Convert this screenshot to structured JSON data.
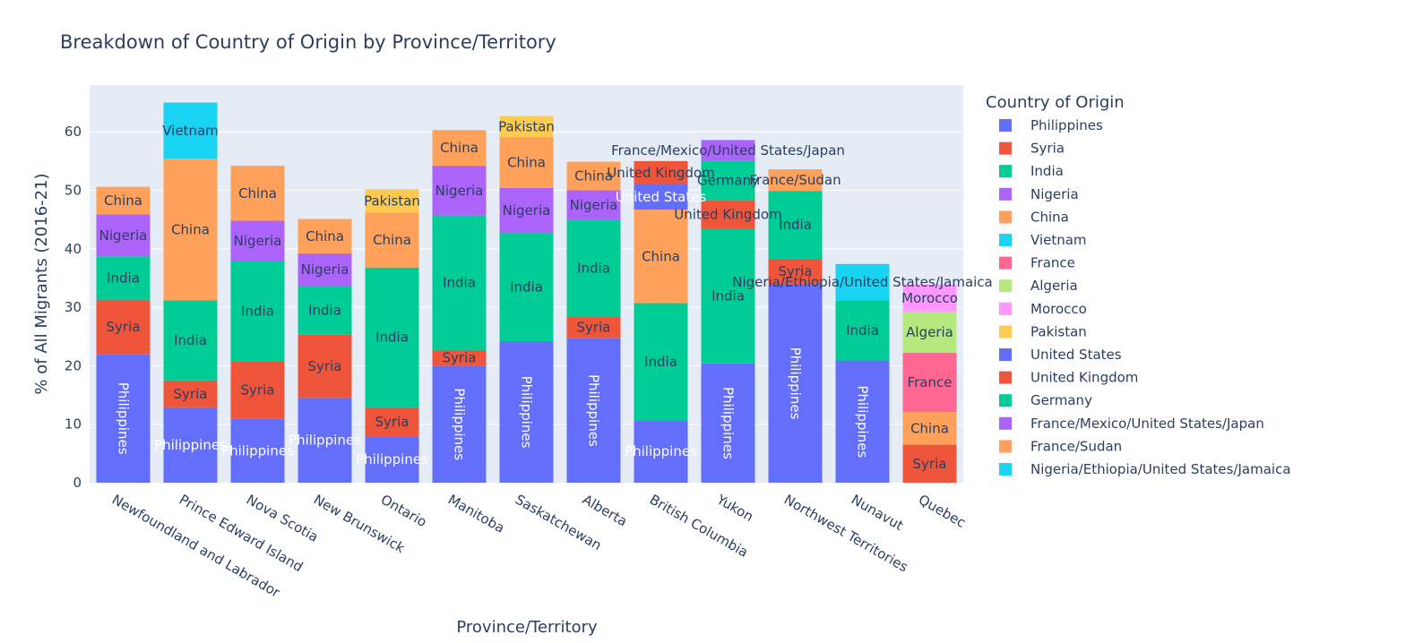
{
  "chart_data": {
    "type": "bar",
    "stacked": true,
    "title": "Breakdown of Country of Origin by Province/Territory",
    "xlabel": "Province/Territory",
    "ylabel": "% of All Migrants (2016-21)",
    "ylim": [
      0,
      68
    ],
    "yticks": [
      0,
      10,
      20,
      30,
      40,
      50,
      60
    ],
    "grid": true,
    "legend_title": "Country of Origin",
    "legend_position": "right",
    "categories": [
      "Newfoundland and Labrador",
      "Prince Edward Island",
      "Nova Scotia",
      "New Brunswick",
      "Ontario",
      "Manitoba",
      "Saskatchewan",
      "Alberta",
      "British Columbia",
      "Yukon",
      "Northwest Territories",
      "Nunavut",
      "Quebec"
    ],
    "series": [
      {
        "name": "Philippines",
        "color": "#636efa",
        "values": [
          22.0,
          12.9,
          10.9,
          14.5,
          7.9,
          20.0,
          24.2,
          24.7,
          10.7,
          20.4,
          34.0,
          20.9,
          0
        ]
      },
      {
        "name": "Syria",
        "color": "#ef553b",
        "values": [
          9.3,
          4.6,
          9.9,
          10.8,
          5.0,
          2.7,
          0,
          3.7,
          0,
          0,
          4.3,
          0,
          6.5
        ]
      },
      {
        "name": "India",
        "color": "#00cc96",
        "values": [
          7.4,
          13.7,
          17.1,
          8.4,
          23.9,
          23.0,
          18.5,
          16.5,
          20.0,
          23.1,
          11.6,
          10.3,
          0
        ]
      },
      {
        "name": "Nigeria",
        "color": "#ab63fa",
        "values": [
          7.2,
          0,
          6.9,
          5.5,
          0,
          8.5,
          7.7,
          5.1,
          0,
          0,
          0,
          0,
          0
        ]
      },
      {
        "name": "China",
        "color": "#ffa15a",
        "values": [
          4.7,
          24.2,
          9.4,
          5.9,
          9.4,
          6.1,
          8.7,
          4.9,
          16.0,
          0,
          0,
          0,
          5.6
        ]
      },
      {
        "name": "Vietnam",
        "color": "#19d3f3",
        "values": [
          0,
          9.6,
          0,
          0,
          0,
          0,
          0,
          0,
          0,
          0,
          0,
          0,
          0
        ]
      },
      {
        "name": "France",
        "color": "#ff6692",
        "values": [
          0,
          0,
          0,
          0,
          0,
          0,
          0,
          0,
          0,
          0,
          0,
          0,
          10.1
        ]
      },
      {
        "name": "Algeria",
        "color": "#b6e880",
        "values": [
          0,
          0,
          0,
          0,
          0,
          0,
          0,
          0,
          0,
          0,
          0,
          0,
          7.0
        ]
      },
      {
        "name": "Morocco",
        "color": "#ff97ff",
        "values": [
          0,
          0,
          0,
          0,
          0,
          0,
          0,
          0,
          0,
          0,
          0,
          0,
          4.7
        ]
      },
      {
        "name": "Pakistan",
        "color": "#fecb52",
        "values": [
          0,
          0,
          0,
          0,
          4.0,
          0,
          3.6,
          0,
          0,
          0,
          0,
          0,
          0
        ]
      },
      {
        "name": "United States",
        "color": "#636efa",
        "values": [
          0,
          0,
          0,
          0,
          0,
          0,
          0,
          0,
          4.3,
          0,
          0,
          0,
          0
        ]
      },
      {
        "name": "United Kingdom",
        "color": "#ef553b",
        "values": [
          0,
          0,
          0,
          0,
          0,
          0,
          0,
          0,
          4.0,
          4.8,
          0,
          0,
          0
        ]
      },
      {
        "name": "Germany",
        "color": "#00cc96",
        "values": [
          0,
          0,
          0,
          0,
          0,
          0,
          0,
          0,
          0,
          6.8,
          0,
          0,
          0
        ]
      },
      {
        "name": "France/Mexico/United States/Japan",
        "color": "#ab63fa",
        "values": [
          0,
          0,
          0,
          0,
          0,
          0,
          0,
          0,
          0,
          3.5,
          0,
          0,
          0
        ]
      },
      {
        "name": "France/Sudan",
        "color": "#ffa15a",
        "values": [
          0,
          0,
          0,
          0,
          0,
          0,
          0,
          0,
          0,
          0,
          3.7,
          0,
          0
        ]
      },
      {
        "name": "Nigeria/Ethiopia/United States/Jamaica",
        "color": "#19d3f3",
        "values": [
          0,
          0,
          0,
          0,
          0,
          0,
          0,
          0,
          0,
          0,
          0,
          6.2,
          0
        ]
      }
    ],
    "segment_labels": [
      {
        "category": "Newfoundland and Labrador",
        "labels": [
          "Philippines",
          "Syria",
          "India",
          "Nigeria",
          "China"
        ]
      },
      {
        "category": "Prince Edward Island",
        "labels": [
          "Philippines",
          "Syria",
          "India",
          "China",
          "Vietnam"
        ]
      },
      {
        "category": "Nova Scotia",
        "labels": [
          "Philippines",
          "Syria",
          "India",
          "Nigeria",
          "China"
        ]
      },
      {
        "category": "New Brunswick",
        "labels": [
          "Philippines",
          "Syria",
          "India",
          "Nigeria",
          "China"
        ]
      },
      {
        "category": "Ontario",
        "labels": [
          "Philippines",
          "Syria",
          "India",
          "China",
          "Pakistan"
        ]
      },
      {
        "category": "Manitoba",
        "labels": [
          "Philippines",
          "Syria",
          "India",
          "Nigeria",
          "China"
        ]
      },
      {
        "category": "Saskatchewan",
        "labels": [
          "Philippines",
          "India",
          "Nigeria",
          "China",
          "Pakistan"
        ]
      },
      {
        "category": "Alberta",
        "labels": [
          "Philippines",
          "Syria",
          "India",
          "Nigeria",
          "China"
        ]
      },
      {
        "category": "British Columbia",
        "labels": [
          "Philippines",
          "India",
          "China",
          "United States",
          "United Kingdom"
        ]
      },
      {
        "category": "Yukon",
        "labels": [
          "Philippines",
          "India",
          "United Kingdom",
          "Germany",
          "France/Mexico/United States/Japan"
        ]
      },
      {
        "category": "Northwest Territories",
        "labels": [
          "Philippines",
          "Syria",
          "India",
          "France/Sudan"
        ]
      },
      {
        "category": "Nunavut",
        "labels": [
          "Philippines",
          "India",
          "Nigeria/Ethiopia/United States/Jamaica"
        ]
      },
      {
        "category": "Quebec",
        "labels": [
          "Syria",
          "China",
          "France",
          "Algeria",
          "Morocco"
        ]
      }
    ]
  }
}
